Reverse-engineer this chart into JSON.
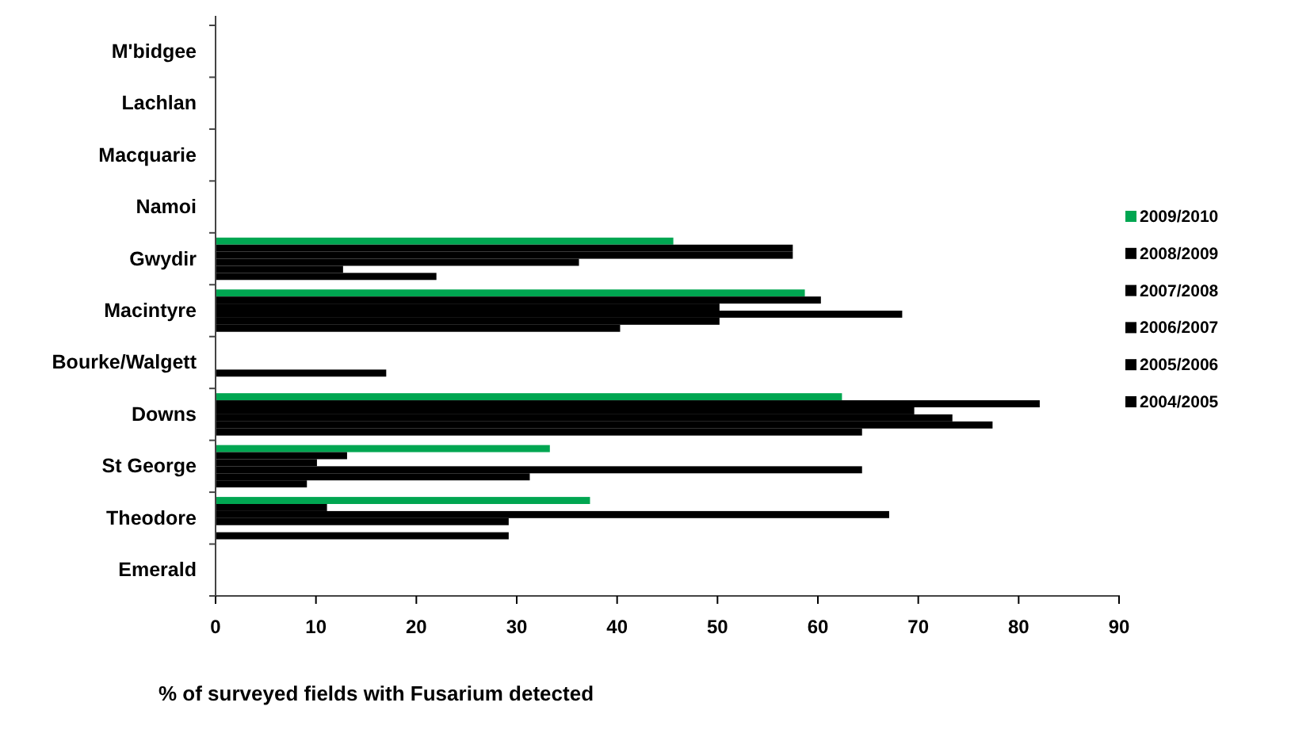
{
  "chart_data": {
    "type": "bar",
    "orientation": "horizontal",
    "xlabel": "% of surveyed fields with Fusarium detected",
    "categories": [
      "M'bidgee",
      "Lachlan",
      "Macquarie",
      "Namoi",
      "Gwydir",
      "Macintyre",
      "Bourke/Walgett",
      "Downs",
      "St George",
      "Theodore",
      "Emerald"
    ],
    "series": [
      {
        "name": "2009/2010",
        "color": "#00a651",
        "values": [
          null,
          null,
          null,
          null,
          45.6,
          58.7,
          null,
          62.4,
          33.3,
          37.3,
          null
        ]
      },
      {
        "name": "2008/2009",
        "color": "#000000",
        "values": [
          null,
          null,
          null,
          null,
          57.5,
          60.3,
          null,
          82.1,
          13.1,
          11.1,
          null
        ]
      },
      {
        "name": "2007/2008",
        "color": "#000000",
        "values": [
          null,
          null,
          null,
          null,
          57.5,
          50.2,
          null,
          69.6,
          10.1,
          67.1,
          null
        ]
      },
      {
        "name": "2006/2007",
        "color": "#000000",
        "values": [
          null,
          null,
          null,
          null,
          36.2,
          68.4,
          null,
          73.4,
          64.4,
          29.2,
          null
        ]
      },
      {
        "name": "2005/2006",
        "color": "#000000",
        "values": [
          null,
          null,
          null,
          null,
          12.7,
          50.2,
          17.0,
          77.4,
          31.3,
          null,
          null
        ]
      },
      {
        "name": "2004/2005",
        "color": "#000000",
        "values": [
          null,
          null,
          null,
          null,
          22.0,
          40.3,
          null,
          64.4,
          9.1,
          29.2,
          null
        ]
      }
    ],
    "xlim": [
      0,
      90
    ],
    "xticks": [
      0,
      10,
      20,
      30,
      40,
      50,
      60,
      70,
      80,
      90
    ],
    "grid": false,
    "legend": "right"
  }
}
